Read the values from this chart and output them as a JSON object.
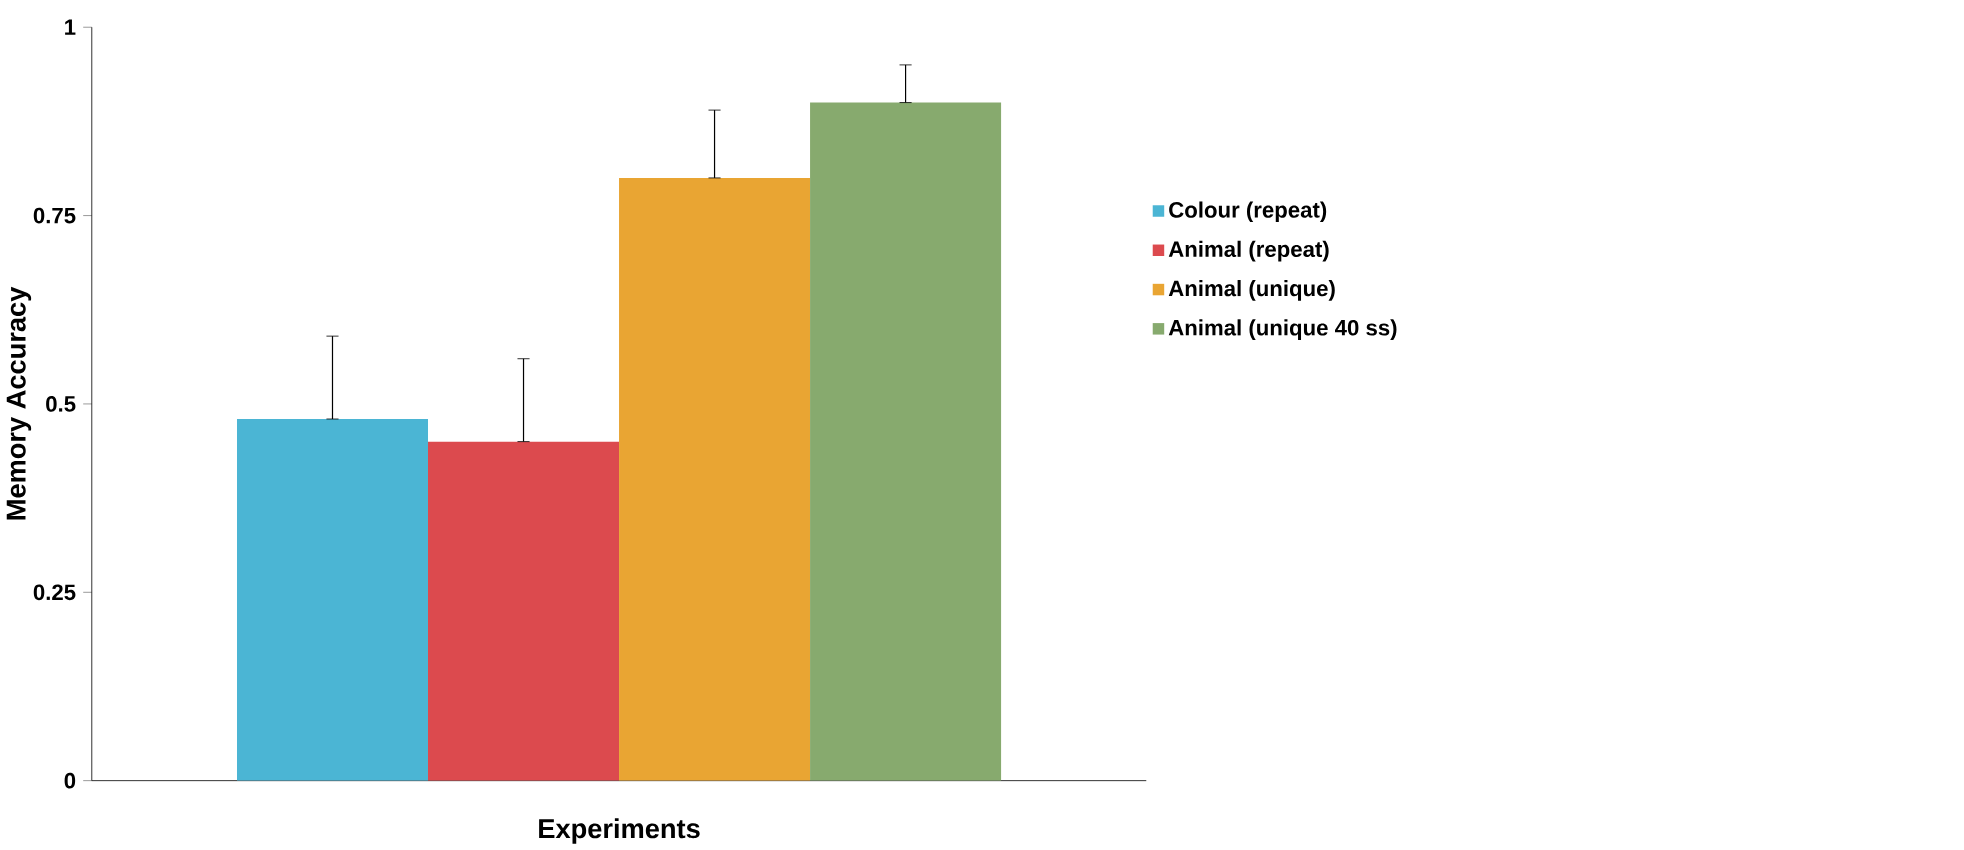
{
  "chart_data": {
    "type": "bar",
    "xlabel": "Experiments",
    "ylabel": "Memory Accuracy",
    "categories": [
      null
    ],
    "series": [
      {
        "name": "Colour (repeat)",
        "color": "#4bb5d4",
        "values": [
          0.48
        ],
        "errors": [
          [
            0.48,
            0.59
          ]
        ]
      },
      {
        "name": "Animal (repeat)",
        "color": "#dc4a4e",
        "values": [
          0.45
        ],
        "errors": [
          [
            0.45,
            0.56
          ]
        ]
      },
      {
        "name": "Animal (unique)",
        "color": "#e9a533",
        "values": [
          0.8
        ],
        "errors": [
          [
            0.8,
            0.89
          ]
        ]
      },
      {
        "name": "Animal (unique 40 ss)",
        "color": "#87aa6e",
        "values": [
          0.9
        ],
        "errors": [
          [
            0.9,
            0.95
          ]
        ]
      }
    ],
    "ylim": [
      0,
      1
    ],
    "yticks": [
      0,
      0.25,
      0.5,
      0.75,
      1
    ],
    "legend": "right"
  }
}
